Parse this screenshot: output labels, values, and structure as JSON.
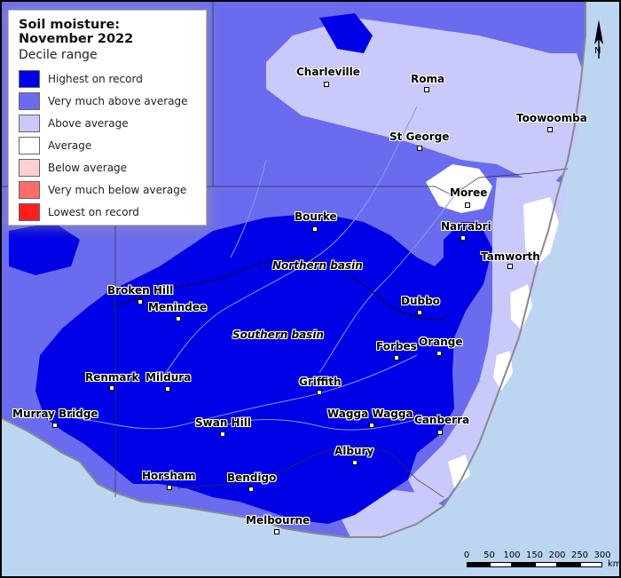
{
  "legend": {
    "title": "Soil moisture: November 2022",
    "subtitle": "Decile range",
    "items": [
      {
        "label": "Highest on record",
        "color": "#0000e6"
      },
      {
        "label": "Very much above average",
        "color": "#6b6bf0"
      },
      {
        "label": "Above average",
        "color": "#c9c9fb"
      },
      {
        "label": "Average",
        "color": "#ffffff"
      },
      {
        "label": "Below average",
        "color": "#ffcfcf"
      },
      {
        "label": "Very much below average",
        "color": "#ff6b6b"
      },
      {
        "label": "Lowest on record",
        "color": "#ff1e1e"
      }
    ]
  },
  "colors": {
    "ocean": "#bcd6f2",
    "highest": "#0000e6",
    "very_much_above": "#6b6bf0",
    "above": "#c9c9fb",
    "average": "#ffffff",
    "rivers": "#7f9ee8"
  },
  "towns": [
    {
      "name": "Charleville"
    },
    {
      "name": "Roma"
    },
    {
      "name": "Toowoomba"
    },
    {
      "name": "St George"
    },
    {
      "name": "Moree"
    },
    {
      "name": "Narrabri"
    },
    {
      "name": "Bourke"
    },
    {
      "name": "Tamworth"
    },
    {
      "name": "Broken Hill"
    },
    {
      "name": "Menindee"
    },
    {
      "name": "Dubbo"
    },
    {
      "name": "Orange"
    },
    {
      "name": "Forbes"
    },
    {
      "name": "Renmark"
    },
    {
      "name": "Mildura"
    },
    {
      "name": "Griffith"
    },
    {
      "name": "Murray Bridge"
    },
    {
      "name": "Wagga Wagga"
    },
    {
      "name": "Canberra"
    },
    {
      "name": "Swan Hill"
    },
    {
      "name": "Albury"
    },
    {
      "name": "Horsham"
    },
    {
      "name": "Bendigo"
    },
    {
      "name": "Melbourne"
    }
  ],
  "basins": [
    {
      "name": "Northern basin"
    },
    {
      "name": "Southern basin"
    }
  ],
  "north_arrow": {
    "letter": "N",
    "icon": "north-arrow-icon"
  },
  "scale_bar": {
    "ticks": [
      "0",
      "50",
      "100",
      "150",
      "200",
      "250",
      "300"
    ],
    "unit": "km"
  }
}
